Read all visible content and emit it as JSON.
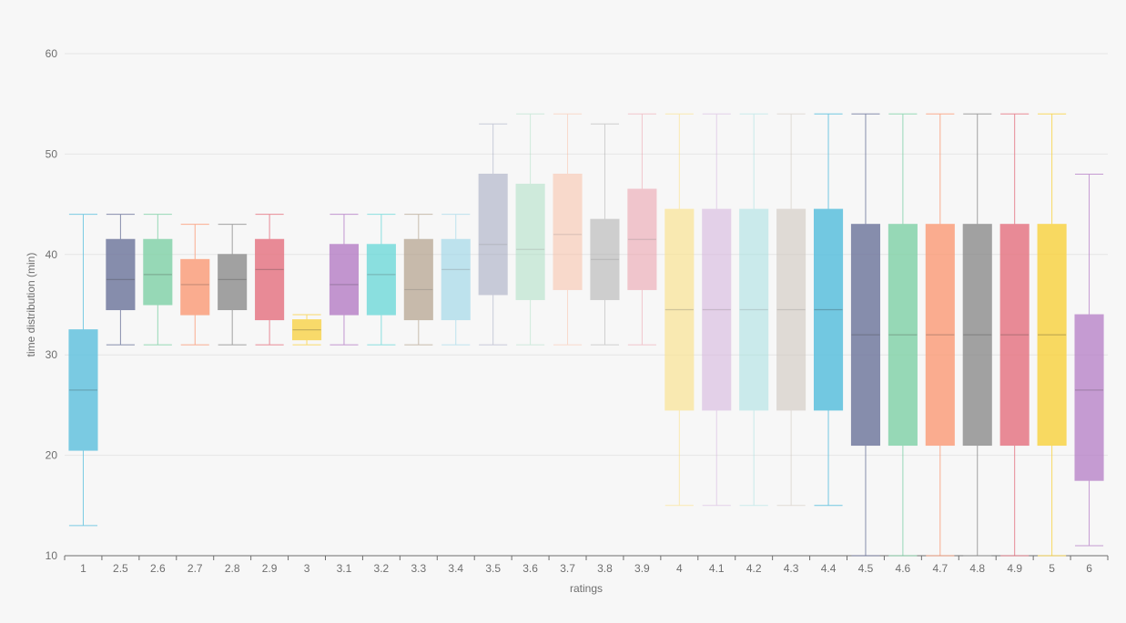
{
  "chart_data": {
    "type": "boxplot",
    "xlabel": "ratings",
    "ylabel": "time distribution (min)",
    "ylim": [
      10,
      60
    ],
    "yticks": [
      10,
      20,
      30,
      40,
      50,
      60
    ],
    "grid": true,
    "categories": [
      "1",
      "2.5",
      "2.6",
      "2.7",
      "2.8",
      "2.9",
      "3",
      "3.1",
      "3.2",
      "3.3",
      "3.4",
      "3.5",
      "3.6",
      "3.7",
      "3.8",
      "3.9",
      "4",
      "4.1",
      "4.2",
      "4.3",
      "4.4",
      "4.5",
      "4.6",
      "4.7",
      "4.8",
      "4.9",
      "5",
      "6"
    ],
    "boxes": [
      {
        "min": 13,
        "q1": 20.5,
        "median": 26.5,
        "q3": 32.5,
        "max": 44,
        "color": "#5bc0de",
        "opacity": 0.8
      },
      {
        "min": 31,
        "q1": 34.5,
        "median": 37.5,
        "q3": 41.5,
        "max": 44,
        "color": "#6b739a",
        "opacity": 0.8
      },
      {
        "min": 31,
        "q1": 35,
        "median": 38,
        "q3": 41.5,
        "max": 44,
        "color": "#7fd1a6",
        "opacity": 0.8
      },
      {
        "min": 31,
        "q1": 34,
        "median": 37,
        "q3": 39.5,
        "max": 43,
        "color": "#fb9a76",
        "opacity": 0.8
      },
      {
        "min": 31,
        "q1": 34.5,
        "median": 37.5,
        "q3": 40,
        "max": 43,
        "color": "#8c8c8c",
        "opacity": 0.8
      },
      {
        "min": 31,
        "q1": 33.5,
        "median": 38.5,
        "q3": 41.5,
        "max": 44,
        "color": "#e5707e",
        "opacity": 0.8
      },
      {
        "min": 31,
        "q1": 31.5,
        "median": 32.5,
        "q3": 33.5,
        "max": 34,
        "color": "#f9d447",
        "opacity": 0.8
      },
      {
        "min": 31,
        "q1": 34,
        "median": 37,
        "q3": 41,
        "max": 44,
        "color": "#b57dc6",
        "opacity": 0.8
      },
      {
        "min": 31,
        "q1": 34,
        "median": 38,
        "q3": 41,
        "max": 44,
        "color": "#5cd6d6",
        "opacity": 0.7
      },
      {
        "min": 31,
        "q1": 33.5,
        "median": 36.5,
        "q3": 41.5,
        "max": 44,
        "color": "#a8937a",
        "opacity": 0.6
      },
      {
        "min": 31,
        "q1": 33.5,
        "median": 38.5,
        "q3": 41.5,
        "max": 44,
        "color": "#8fd1e6",
        "opacity": 0.55
      },
      {
        "min": 31,
        "q1": 36,
        "median": 41,
        "q3": 48,
        "max": 53,
        "color": "#8f95b3",
        "opacity": 0.45
      },
      {
        "min": 31,
        "q1": 35.5,
        "median": 40.5,
        "q3": 47,
        "max": 54,
        "color": "#9edcbb",
        "opacity": 0.45
      },
      {
        "min": 31,
        "q1": 36.5,
        "median": 42,
        "q3": 48,
        "max": 54,
        "color": "#fbb598",
        "opacity": 0.45
      },
      {
        "min": 31,
        "q1": 35.5,
        "median": 39.5,
        "q3": 43.5,
        "max": 53,
        "color": "#a6a6a6",
        "opacity": 0.5
      },
      {
        "min": 31,
        "q1": 36.5,
        "median": 41.5,
        "q3": 46.5,
        "max": 54,
        "color": "#eb95a2",
        "opacity": 0.5
      },
      {
        "min": 15,
        "q1": 24.5,
        "median": 34.5,
        "q3": 44.5,
        "max": 54,
        "color": "#fbe28c",
        "opacity": 0.65
      },
      {
        "min": 15,
        "q1": 24.5,
        "median": 34.5,
        "q3": 44.5,
        "max": 54,
        "color": "#d4b1dd",
        "opacity": 0.55
      },
      {
        "min": 15,
        "q1": 24.5,
        "median": 34.5,
        "q3": 44.5,
        "max": 54,
        "color": "#9edfe0",
        "opacity": 0.5
      },
      {
        "min": 15,
        "q1": 24.5,
        "median": 34.5,
        "q3": 44.5,
        "max": 54,
        "color": "#c9bfb5",
        "opacity": 0.5
      },
      {
        "min": 15,
        "q1": 24.5,
        "median": 34.5,
        "q3": 44.5,
        "max": 54,
        "color": "#5bc0de",
        "opacity": 0.85
      },
      {
        "min": 10,
        "q1": 21,
        "median": 32,
        "q3": 43,
        "max": 54,
        "color": "#6b739a",
        "opacity": 0.8
      },
      {
        "min": 10,
        "q1": 21,
        "median": 32,
        "q3": 43,
        "max": 54,
        "color": "#7fd1a6",
        "opacity": 0.8
      },
      {
        "min": 10,
        "q1": 21,
        "median": 32,
        "q3": 43,
        "max": 54,
        "color": "#fb9a76",
        "opacity": 0.8
      },
      {
        "min": 10,
        "q1": 21,
        "median": 32,
        "q3": 43,
        "max": 54,
        "color": "#8c8c8c",
        "opacity": 0.8
      },
      {
        "min": 10,
        "q1": 21,
        "median": 32,
        "q3": 43,
        "max": 54,
        "color": "#e5707e",
        "opacity": 0.8
      },
      {
        "min": 10,
        "q1": 21,
        "median": 32,
        "q3": 43,
        "max": 54,
        "color": "#f9d447",
        "opacity": 0.85
      },
      {
        "min": 11,
        "q1": 17.5,
        "median": 26.5,
        "q3": 34,
        "max": 48,
        "color": "#b57dc6",
        "opacity": 0.75
      }
    ]
  }
}
